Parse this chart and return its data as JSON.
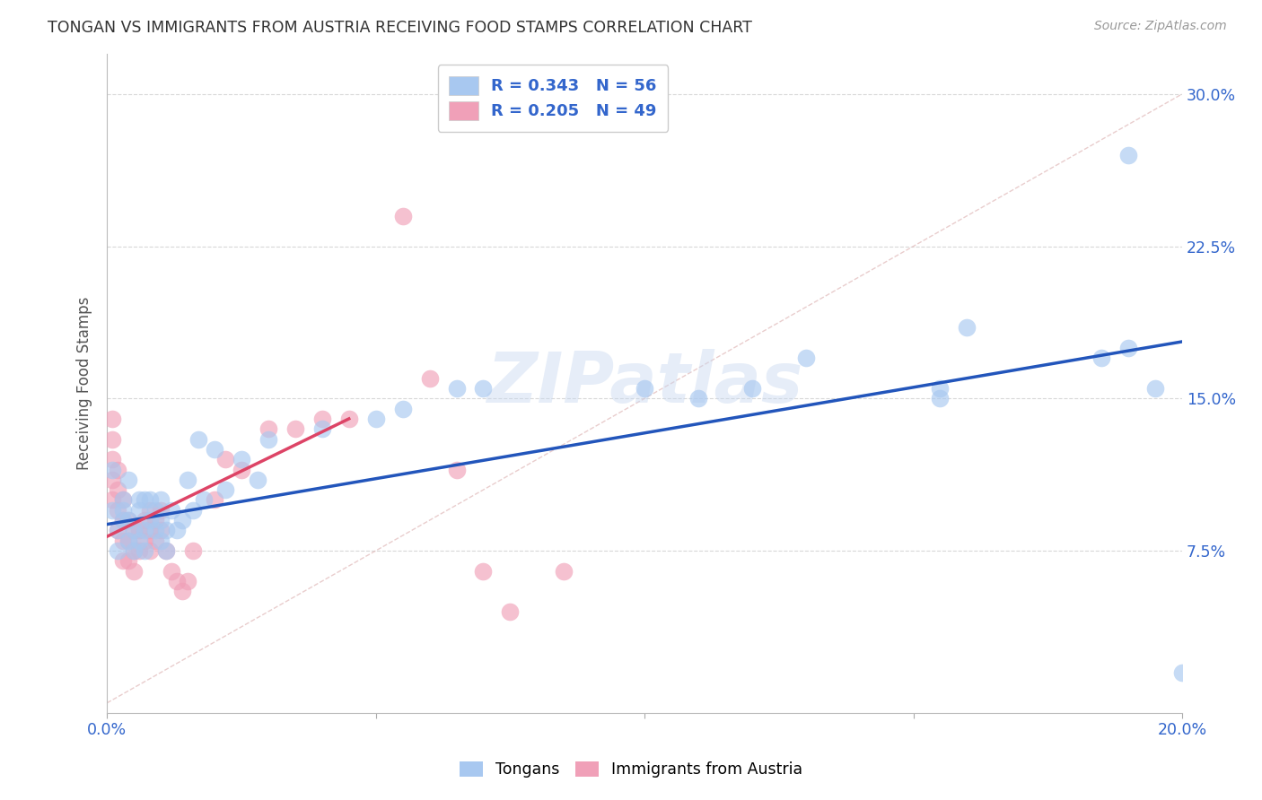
{
  "title": "TONGAN VS IMMIGRANTS FROM AUSTRIA RECEIVING FOOD STAMPS CORRELATION CHART",
  "source": "Source: ZipAtlas.com",
  "ylabel": "Receiving Food Stamps",
  "xlim": [
    0.0,
    0.2
  ],
  "ylim": [
    -0.005,
    0.32
  ],
  "xticks": [
    0.0,
    0.05,
    0.1,
    0.15,
    0.2
  ],
  "xticklabels": [
    "0.0%",
    "",
    "",
    "",
    "20.0%"
  ],
  "yticks_right": [
    0.075,
    0.15,
    0.225,
    0.3
  ],
  "ytick_right_labels": [
    "7.5%",
    "15.0%",
    "22.5%",
    "30.0%"
  ],
  "color_blue": "#a8c8f0",
  "color_pink": "#f0a0b8",
  "line_blue": "#2255bb",
  "line_pink": "#dd4466",
  "line_diag": "#e0b8b8",
  "background": "#ffffff",
  "grid_color": "#d8d8d8",
  "label_color": "#3366cc",
  "title_color": "#333333",
  "blue_x": [
    0.001,
    0.001,
    0.002,
    0.002,
    0.003,
    0.003,
    0.003,
    0.004,
    0.004,
    0.004,
    0.005,
    0.005,
    0.006,
    0.006,
    0.006,
    0.007,
    0.007,
    0.007,
    0.008,
    0.008,
    0.009,
    0.009,
    0.01,
    0.01,
    0.01,
    0.011,
    0.011,
    0.012,
    0.013,
    0.014,
    0.015,
    0.016,
    0.017,
    0.018,
    0.02,
    0.022,
    0.025,
    0.028,
    0.03,
    0.04,
    0.05,
    0.055,
    0.065,
    0.07,
    0.1,
    0.11,
    0.12,
    0.13,
    0.155,
    0.155,
    0.16,
    0.185,
    0.19,
    0.19,
    0.195,
    0.2
  ],
  "blue_y": [
    0.115,
    0.095,
    0.085,
    0.075,
    0.09,
    0.095,
    0.1,
    0.09,
    0.08,
    0.11,
    0.085,
    0.075,
    0.1,
    0.095,
    0.08,
    0.1,
    0.085,
    0.075,
    0.09,
    0.1,
    0.095,
    0.085,
    0.1,
    0.09,
    0.08,
    0.085,
    0.075,
    0.095,
    0.085,
    0.09,
    0.11,
    0.095,
    0.13,
    0.1,
    0.125,
    0.105,
    0.12,
    0.11,
    0.13,
    0.135,
    0.14,
    0.145,
    0.155,
    0.155,
    0.155,
    0.15,
    0.155,
    0.17,
    0.155,
    0.15,
    0.185,
    0.17,
    0.175,
    0.27,
    0.155,
    0.015
  ],
  "pink_x": [
    0.001,
    0.001,
    0.001,
    0.001,
    0.001,
    0.002,
    0.002,
    0.002,
    0.002,
    0.003,
    0.003,
    0.003,
    0.003,
    0.004,
    0.004,
    0.004,
    0.005,
    0.005,
    0.005,
    0.006,
    0.006,
    0.007,
    0.007,
    0.008,
    0.008,
    0.008,
    0.009,
    0.009,
    0.01,
    0.01,
    0.011,
    0.012,
    0.013,
    0.014,
    0.015,
    0.016,
    0.02,
    0.022,
    0.025,
    0.03,
    0.035,
    0.04,
    0.045,
    0.055,
    0.06,
    0.065,
    0.07,
    0.075,
    0.085
  ],
  "pink_y": [
    0.14,
    0.13,
    0.12,
    0.11,
    0.1,
    0.115,
    0.105,
    0.095,
    0.085,
    0.1,
    0.09,
    0.08,
    0.07,
    0.09,
    0.08,
    0.07,
    0.085,
    0.075,
    0.065,
    0.085,
    0.075,
    0.09,
    0.08,
    0.095,
    0.085,
    0.075,
    0.09,
    0.08,
    0.095,
    0.085,
    0.075,
    0.065,
    0.06,
    0.055,
    0.06,
    0.075,
    0.1,
    0.12,
    0.115,
    0.135,
    0.135,
    0.14,
    0.14,
    0.24,
    0.16,
    0.115,
    0.065,
    0.045,
    0.065
  ],
  "blue_trendline_x": [
    0.0,
    0.2
  ],
  "blue_trendline_y": [
    0.088,
    0.178
  ],
  "pink_trendline_x": [
    0.0,
    0.045
  ],
  "pink_trendline_y": [
    0.082,
    0.14
  ],
  "diag_line_x": [
    0.0,
    0.2
  ],
  "diag_line_y": [
    0.0,
    0.3
  ]
}
